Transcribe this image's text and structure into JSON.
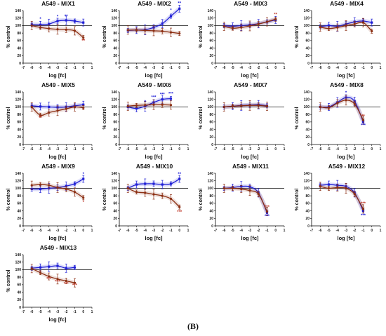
{
  "figure_label": "(B)",
  "legend_colors": {
    "blue": "#1f1fd6",
    "brown": "#8b2e12"
  },
  "chart_data": [
    {
      "type": "line",
      "title": "A549 - MIX1",
      "xlabel": "log [fc]",
      "ylabel": "% control",
      "xlim": [
        -7,
        1
      ],
      "ylim": [
        0,
        140
      ],
      "xticks": [
        "-7",
        "-6",
        "-5",
        "-4",
        "-3",
        "-2",
        "-1",
        "0",
        "1"
      ],
      "yticks": [
        "0",
        "20",
        "40",
        "60",
        "80",
        "100",
        "120",
        "140"
      ],
      "reference_line": 100,
      "x": [
        -6,
        -5,
        -4,
        -3,
        -2,
        -1,
        0
      ],
      "series": [
        {
          "color": "#1f1fd6",
          "values": [
            103,
            102,
            104,
            112,
            114,
            112,
            108
          ]
        },
        {
          "color": "#8b2e12",
          "values": [
            100,
            95,
            92,
            90,
            89,
            86,
            68
          ]
        }
      ],
      "annotations": [
        {
          "text": "*",
          "x": -5,
          "y": 114,
          "color": "#1f1fd6"
        },
        {
          "text": "*",
          "x": -3,
          "y": 120,
          "color": "#1f1fd6"
        },
        {
          "text": "**",
          "x": -2,
          "y": 121,
          "color": "#1f1fd6"
        },
        {
          "text": "**",
          "x": 0,
          "y": 56,
          "color": "#c0392b"
        }
      ]
    },
    {
      "type": "line",
      "title": "A549 - MIX2",
      "xlabel": "log [fc]",
      "ylabel": "% control",
      "xlim": [
        -7,
        1
      ],
      "ylim": [
        0,
        140
      ],
      "xticks": [
        "-7",
        "-6",
        "-5",
        "-4",
        "-3",
        "-2",
        "-1",
        "0",
        "1"
      ],
      "yticks": [
        "0",
        "20",
        "40",
        "60",
        "80",
        "100",
        "120",
        "140"
      ],
      "reference_line": 100,
      "x": [
        -6,
        -5,
        -4,
        -3,
        -2,
        -1,
        0
      ],
      "series": [
        {
          "color": "#1f1fd6",
          "values": [
            87,
            88,
            89,
            95,
            105,
            125,
            145
          ]
        },
        {
          "color": "#8b2e12",
          "values": [
            88,
            88,
            87,
            86,
            85,
            82,
            79
          ]
        }
      ],
      "annotations": [
        {
          "text": "*",
          "x": -1,
          "y": 137,
          "color": "#1f1fd6"
        },
        {
          "text": "**",
          "x": 0,
          "y": 156,
          "color": "#1f1fd6"
        }
      ]
    },
    {
      "type": "line",
      "title": "A549 - MIX3",
      "xlabel": "log [fc]",
      "ylabel": "% control",
      "xlim": [
        -7,
        1
      ],
      "ylim": [
        0,
        140
      ],
      "xticks": [
        "-7",
        "-6",
        "-5",
        "-4",
        "-3",
        "-2",
        "-1",
        "0",
        "1"
      ],
      "yticks": [
        "0",
        "20",
        "40",
        "60",
        "80",
        "100",
        "120",
        "140"
      ],
      "reference_line": 100,
      "x": [
        -6,
        -5,
        -4,
        -3,
        -2,
        -1,
        0
      ],
      "series": [
        {
          "color": "#1f1fd6",
          "values": [
            100,
            98,
            100,
            102,
            105,
            110,
            115
          ]
        },
        {
          "color": "#8b2e12",
          "values": [
            98,
            93,
            95,
            99,
            104,
            110,
            117
          ]
        }
      ],
      "annotations": [
        {
          "text": "**",
          "x": 0,
          "y": 126,
          "color": "#c0392b"
        }
      ]
    },
    {
      "type": "line",
      "title": "A549 - MIX4",
      "xlabel": "log [fc]",
      "ylabel": "% control",
      "xlim": [
        -7,
        1
      ],
      "ylim": [
        0,
        140
      ],
      "xticks": [
        "-7",
        "-6",
        "-5",
        "-4",
        "-3",
        "-2",
        "-1",
        "0",
        "1"
      ],
      "yticks": [
        "0",
        "20",
        "40",
        "60",
        "80",
        "100",
        "120",
        "140"
      ],
      "reference_line": 100,
      "x": [
        -6,
        -5,
        -4,
        -3,
        -2,
        -1,
        0
      ],
      "series": [
        {
          "color": "#1f1fd6",
          "values": [
            97,
            100,
            98,
            104,
            110,
            112,
            108
          ]
        },
        {
          "color": "#8b2e12",
          "values": [
            96,
            92,
            95,
            100,
            104,
            108,
            85
          ]
        }
      ],
      "annotations": []
    },
    {
      "type": "line",
      "title": "A549 - MIX5",
      "xlabel": "log [fc]",
      "ylabel": "% control",
      "xlim": [
        -7,
        1
      ],
      "ylim": [
        0,
        140
      ],
      "xticks": [
        "-7",
        "-6",
        "-5",
        "-4",
        "-3",
        "-2",
        "-1",
        "0",
        "1"
      ],
      "yticks": [
        "0",
        "20",
        "40",
        "60",
        "80",
        "100",
        "120",
        "140"
      ],
      "reference_line": 100,
      "x": [
        -6,
        -5,
        -4,
        -3,
        -2,
        -1,
        0
      ],
      "series": [
        {
          "color": "#1f1fd6",
          "values": [
            103,
            101,
            100,
            99,
            100,
            103,
            106
          ]
        },
        {
          "color": "#8b2e12",
          "values": [
            100,
            78,
            85,
            90,
            95,
            100,
            98
          ]
        }
      ],
      "annotations": [
        {
          "text": "**",
          "x": -5,
          "y": 68,
          "color": "#c0392b"
        }
      ]
    },
    {
      "type": "line",
      "title": "A549 - MIX6",
      "xlabel": "log [fc]",
      "ylabel": "% control",
      "xlim": [
        -7,
        1
      ],
      "ylim": [
        0,
        140
      ],
      "xticks": [
        "-7",
        "-6",
        "-5",
        "-4",
        "-3",
        "-2",
        "-1",
        "0",
        "1"
      ],
      "yticks": [
        "0",
        "20",
        "40",
        "60",
        "80",
        "100",
        "120",
        "140"
      ],
      "reference_line": 100,
      "x": [
        -6,
        -5,
        -4,
        -3,
        -2,
        -1
      ],
      "series": [
        {
          "color": "#1f1fd6",
          "values": [
            100,
            96,
            102,
            112,
            120,
            122
          ]
        },
        {
          "color": "#8b2e12",
          "values": [
            102,
            104,
            105,
            106,
            106,
            105
          ]
        }
      ],
      "annotations": [
        {
          "text": "*",
          "x": -4,
          "y": 110,
          "color": "#1f1fd6"
        },
        {
          "text": "***",
          "x": -3,
          "y": 122,
          "color": "#1f1fd6"
        },
        {
          "text": "***",
          "x": -2,
          "y": 130,
          "color": "#1f1fd6"
        },
        {
          "text": "***",
          "x": -1,
          "y": 132,
          "color": "#1f1fd6"
        }
      ]
    },
    {
      "type": "line",
      "title": "A549 - MIX7",
      "xlabel": "log [fc]",
      "ylabel": "% control",
      "xlim": [
        -7,
        1
      ],
      "ylim": [
        0,
        140
      ],
      "xticks": [
        "-7",
        "-6",
        "-5",
        "-4",
        "-3",
        "-2",
        "-1",
        "0",
        "1"
      ],
      "yticks": [
        "0",
        "20",
        "40",
        "60",
        "80",
        "100",
        "120",
        "140"
      ],
      "reference_line": 100,
      "x": [
        -6,
        -5,
        -4,
        -3,
        -2,
        -1
      ],
      "series": [
        {
          "color": "#1f1fd6",
          "values": [
            100,
            102,
            104,
            105,
            106,
            103
          ]
        },
        {
          "color": "#8b2e12",
          "values": [
            100,
            102,
            103,
            104,
            104,
            102
          ]
        }
      ],
      "annotations": []
    },
    {
      "type": "line",
      "title": "A549 - MIX8",
      "xlabel": "log [fc]",
      "ylabel": "% control",
      "xlim": [
        -7,
        1
      ],
      "ylim": [
        0,
        140
      ],
      "xticks": [
        "-7",
        "-6",
        "-5",
        "-4",
        "-3",
        "-2",
        "-1",
        "0",
        "1"
      ],
      "yticks": [
        "0",
        "20",
        "40",
        "60",
        "80",
        "100",
        "120",
        "140"
      ],
      "reference_line": 100,
      "x": [
        -6,
        -5,
        -4,
        -3,
        -2,
        -1
      ],
      "series": [
        {
          "color": "#1f1fd6",
          "values": [
            100,
            100,
            112,
            125,
            115,
            60
          ]
        },
        {
          "color": "#8b2e12",
          "values": [
            100,
            98,
            110,
            118,
            108,
            65
          ]
        }
      ],
      "annotations": [
        {
          "text": "*",
          "x": -3,
          "y": 134,
          "color": "#1f1fd6"
        },
        {
          "text": "**",
          "x": -1,
          "y": 72,
          "color": "#c0392b"
        },
        {
          "text": "***",
          "x": -1,
          "y": 48,
          "color": "#1f1fd6"
        }
      ]
    },
    {
      "type": "line",
      "title": "A549 - MIX9",
      "xlabel": "log [fc]",
      "ylabel": "% control",
      "xlim": [
        -7,
        1
      ],
      "ylim": [
        0,
        140
      ],
      "xticks": [
        "-7",
        "-6",
        "-5",
        "-4",
        "-3",
        "-2",
        "-1",
        "0",
        "1"
      ],
      "yticks": [
        "0",
        "20",
        "40",
        "60",
        "80",
        "100",
        "120",
        "140"
      ],
      "reference_line": 100,
      "x": [
        -6,
        -5,
        -4,
        -3,
        -2,
        -1,
        0
      ],
      "series": [
        {
          "color": "#1f1fd6",
          "values": [
            98,
            98,
            100,
            102,
            106,
            112,
            125
          ]
        },
        {
          "color": "#8b2e12",
          "values": [
            108,
            110,
            108,
            102,
            98,
            90,
            75
          ]
        }
      ],
      "annotations": [
        {
          "text": "*",
          "x": 0,
          "y": 134,
          "color": "#1f1fd6"
        },
        {
          "text": "*",
          "x": 0,
          "y": 60,
          "color": "#c0392b"
        }
      ]
    },
    {
      "type": "line",
      "title": "A549 - MIX10",
      "xlabel": "log [fc]",
      "ylabel": "% control",
      "xlim": [
        -7,
        1
      ],
      "ylim": [
        0,
        140
      ],
      "xticks": [
        "-7",
        "-6",
        "-5",
        "-4",
        "-3",
        "-2",
        "-1",
        "0",
        "1"
      ],
      "yticks": [
        "0",
        "20",
        "40",
        "60",
        "80",
        "100",
        "120",
        "140"
      ],
      "reference_line": 100,
      "x": [
        -6,
        -5,
        -4,
        -3,
        -2,
        -1,
        0
      ],
      "series": [
        {
          "color": "#1f1fd6",
          "values": [
            100,
            110,
            112,
            112,
            110,
            112,
            125
          ]
        },
        {
          "color": "#8b2e12",
          "values": [
            100,
            90,
            88,
            84,
            80,
            72,
            50
          ]
        }
      ],
      "annotations": [
        {
          "text": "**",
          "x": 0,
          "y": 134,
          "color": "#1f1fd6"
        },
        {
          "text": "***",
          "x": 0,
          "y": 34,
          "color": "#c0392b"
        }
      ]
    },
    {
      "type": "line",
      "title": "A549 - MIX11",
      "xlabel": "log [fc]",
      "ylabel": "% control",
      "xlim": [
        -7,
        1
      ],
      "ylim": [
        0,
        140
      ],
      "xticks": [
        "-7",
        "-6",
        "-5",
        "-4",
        "-3",
        "-2",
        "-1",
        "0",
        "1"
      ],
      "yticks": [
        "0",
        "20",
        "40",
        "60",
        "80",
        "100",
        "120",
        "140"
      ],
      "reference_line": 100,
      "x": [
        -6,
        -5,
        -4,
        -3,
        -2,
        -1
      ],
      "series": [
        {
          "color": "#1f1fd6",
          "values": [
            100,
            102,
            105,
            104,
            88,
            35
          ]
        },
        {
          "color": "#8b2e12",
          "values": [
            100,
            100,
            98,
            94,
            85,
            38
          ]
        }
      ],
      "annotations": [
        {
          "text": "***",
          "x": -1,
          "y": 47,
          "color": "#c0392b"
        },
        {
          "text": "***",
          "x": -1,
          "y": 22,
          "color": "#1f1fd6"
        }
      ]
    },
    {
      "type": "line",
      "title": "A549 - MIX12",
      "xlabel": "log [fc]",
      "ylabel": "% control",
      "xlim": [
        -7,
        1
      ],
      "ylim": [
        0,
        140
      ],
      "xticks": [
        "-7",
        "-6",
        "-5",
        "-4",
        "-3",
        "-2",
        "-1",
        "0",
        "1"
      ],
      "yticks": [
        "0",
        "20",
        "40",
        "60",
        "80",
        "100",
        "120",
        "140"
      ],
      "reference_line": 100,
      "x": [
        -6,
        -5,
        -4,
        -3,
        -2,
        -1
      ],
      "series": [
        {
          "color": "#1f1fd6",
          "values": [
            108,
            110,
            108,
            105,
            88,
            40
          ]
        },
        {
          "color": "#8b2e12",
          "values": [
            105,
            100,
            102,
            100,
            85,
            45
          ]
        }
      ],
      "annotations": [
        {
          "text": "***",
          "x": -1,
          "y": 56,
          "color": "#c0392b"
        },
        {
          "text": "***",
          "x": -1,
          "y": 24,
          "color": "#1f1fd6"
        }
      ]
    },
    {
      "type": "line",
      "title": "A549 - MIX13",
      "xlabel": "log [fc]",
      "ylabel": "% control",
      "xlim": [
        -7,
        1
      ],
      "ylim": [
        0,
        140
      ],
      "xticks": [
        "-7",
        "-6",
        "-5",
        "-4",
        "-3",
        "-2",
        "-1",
        "0",
        "1"
      ],
      "yticks": [
        "0",
        "20",
        "40",
        "60",
        "80",
        "100",
        "120",
        "140"
      ],
      "reference_line": 100,
      "x": [
        -6,
        -5,
        -4,
        -3,
        -2,
        -1
      ],
      "series": [
        {
          "color": "#1f1fd6",
          "values": [
            104,
            106,
            108,
            110,
            104,
            106
          ]
        },
        {
          "color": "#8b2e12",
          "values": [
            103,
            92,
            82,
            75,
            70,
            65
          ]
        }
      ],
      "annotations": [
        {
          "text": "***",
          "x": -4,
          "y": 72,
          "color": "#c0392b"
        },
        {
          "text": "***",
          "x": -3,
          "y": 64,
          "color": "#c0392b"
        },
        {
          "text": "***",
          "x": -2,
          "y": 59,
          "color": "#c0392b"
        },
        {
          "text": "***",
          "x": -1,
          "y": 55,
          "color": "#c0392b"
        }
      ]
    }
  ]
}
